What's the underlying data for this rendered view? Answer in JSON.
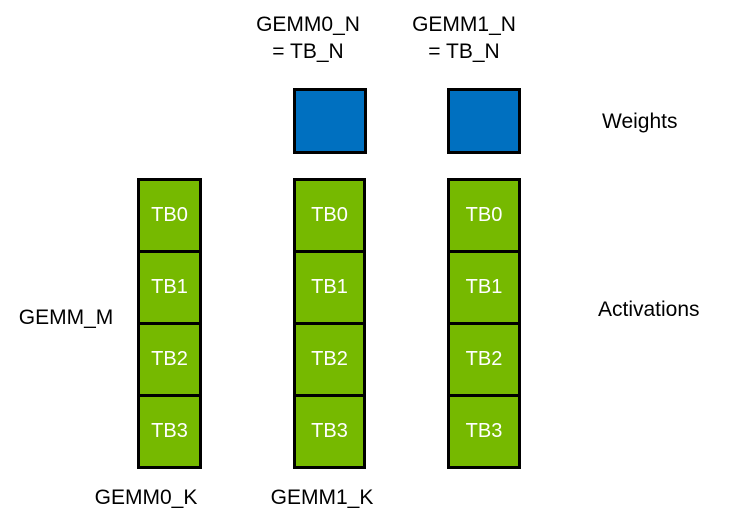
{
  "diagram": {
    "headers": [
      {
        "line1": "GEMM0_N",
        "line2": "= TB_N"
      },
      {
        "line1": "GEMM1_N",
        "line2": "= TB_N"
      }
    ],
    "labels": {
      "weights": "Weights",
      "activations": "Activations",
      "gemm_m": "GEMM_M",
      "gemm0_k": "GEMM0_K",
      "gemm1_k": "GEMM1_K"
    },
    "columns": [
      {
        "cells": [
          "TB0",
          "TB1",
          "TB2",
          "TB3"
        ]
      },
      {
        "cells": [
          "TB0",
          "TB1",
          "TB2",
          "TB3"
        ]
      },
      {
        "cells": [
          "TB0",
          "TB1",
          "TB2",
          "TB3"
        ]
      }
    ],
    "colors": {
      "weights_fill": "#0070C0",
      "activations_fill": "#76B900",
      "border": "#000000",
      "cell_text": "#FFFFFF",
      "background": "#FFFFFF"
    }
  }
}
